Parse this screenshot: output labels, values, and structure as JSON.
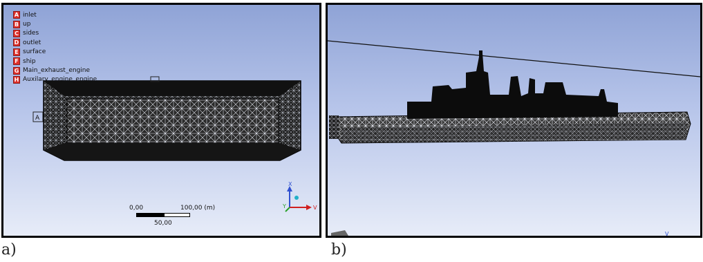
{
  "panel_a": {
    "legend": [
      {
        "key": "A",
        "label": "inlet"
      },
      {
        "key": "B",
        "label": "up"
      },
      {
        "key": "C",
        "label": "sides"
      },
      {
        "key": "D",
        "label": "outlet"
      },
      {
        "key": "E",
        "label": "surface"
      },
      {
        "key": "F",
        "label": "ship"
      },
      {
        "key": "G",
        "label": "Main_exhaust_engine"
      },
      {
        "key": "H",
        "label": "Auxilary_engine_engine"
      }
    ],
    "box_marker": "A",
    "scale": {
      "start": "0,00",
      "end": "100,00 (m)",
      "mid": "50,00"
    },
    "triad": {
      "x": "X",
      "y": "Y",
      "z": "V"
    },
    "figure_label": "a)"
  },
  "panel_b": {
    "triad_mark": "V",
    "figure_label": "b)"
  },
  "colors": {
    "legend_badge": "#e0302b",
    "viewport_top": "#8fa3d6",
    "viewport_bottom": "#e7ecf8",
    "axis_x": "#3050d0",
    "axis_y": "#2aa02a",
    "axis_v": "#d02020"
  }
}
